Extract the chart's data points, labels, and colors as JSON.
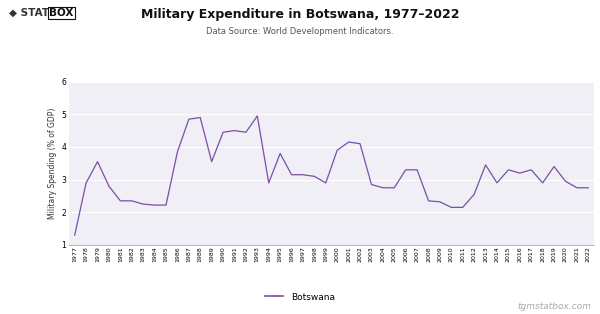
{
  "title": "Military Expenditure in Botswana, 1977–2022",
  "subtitle": "Data Source: World Development Indicators.",
  "ylabel": "Military Spending (% of GDP)",
  "legend_label": "Botswana",
  "watermark": "tgmstatbox.com",
  "line_color": "#7B4FA6",
  "background_color": "#FFFFFF",
  "plot_bg_color": "#F0EFF5",
  "grid_color": "#FFFFFF",
  "ylim": [
    1,
    6
  ],
  "yticks": [
    1,
    2,
    3,
    4,
    5,
    6
  ],
  "years": [
    1977,
    1978,
    1979,
    1980,
    1981,
    1982,
    1983,
    1984,
    1985,
    1986,
    1987,
    1988,
    1989,
    1990,
    1991,
    1992,
    1993,
    1994,
    1995,
    1996,
    1997,
    1998,
    1999,
    2000,
    2001,
    2002,
    2003,
    2004,
    2005,
    2006,
    2007,
    2008,
    2009,
    2010,
    2011,
    2012,
    2013,
    2014,
    2015,
    2016,
    2017,
    2018,
    2019,
    2020,
    2021,
    2022
  ],
  "values": [
    1.3,
    2.9,
    3.55,
    2.8,
    2.35,
    2.35,
    2.25,
    2.22,
    2.22,
    3.85,
    4.85,
    4.9,
    3.55,
    4.45,
    4.5,
    4.45,
    4.95,
    2.9,
    3.8,
    3.15,
    3.15,
    3.1,
    2.9,
    3.9,
    4.15,
    4.1,
    2.85,
    2.75,
    2.75,
    3.3,
    3.3,
    2.35,
    2.32,
    2.15,
    2.15,
    2.55,
    3.45,
    2.9,
    3.3,
    3.2,
    3.3,
    2.9,
    3.4,
    2.95,
    2.75,
    2.75
  ]
}
